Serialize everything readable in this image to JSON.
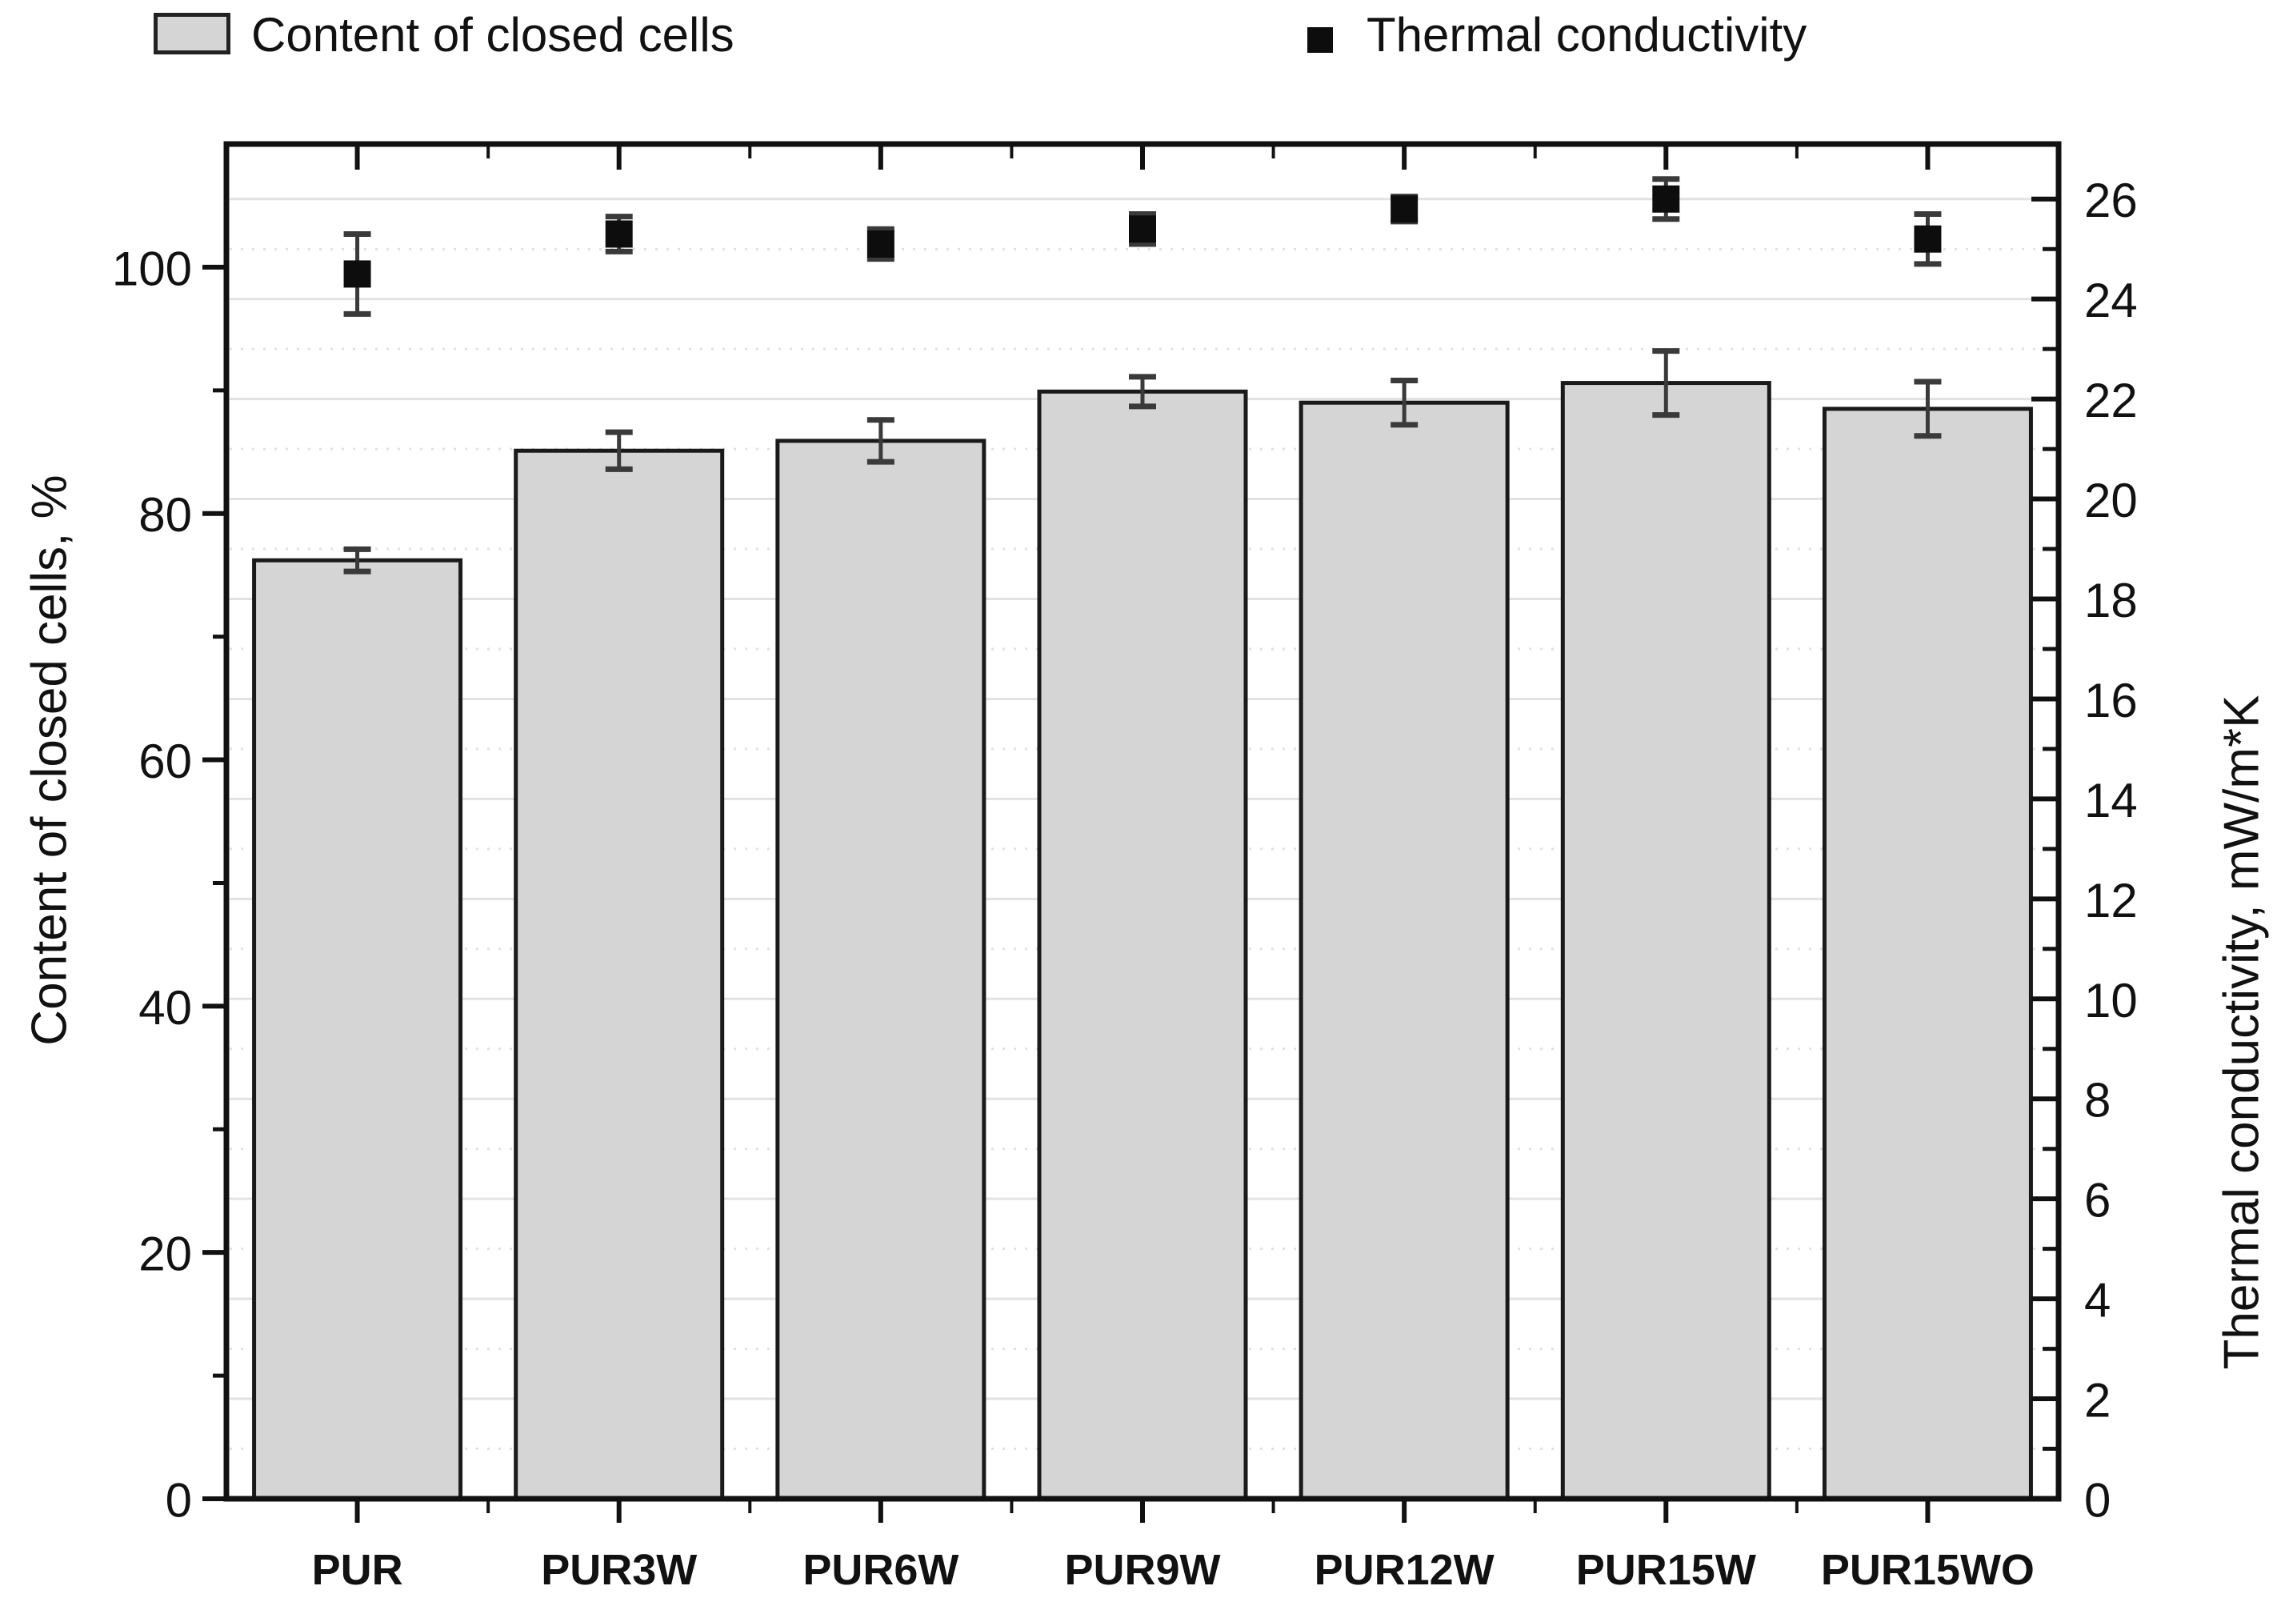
{
  "chart_data": {
    "type": "bar",
    "dual_axis": true,
    "title": "",
    "categories": [
      "PUR",
      "PUR3W",
      "PUR6W",
      "PUR9W",
      "PUR12W",
      "PUR15W",
      "PUR15WO"
    ],
    "series": [
      {
        "name": "Content of closed cells",
        "plot": "bar",
        "axis": "left",
        "unit": "%",
        "values": [
          76.2,
          85.1,
          85.9,
          89.9,
          89.0,
          90.6,
          88.5
        ],
        "errors": [
          0.9,
          1.5,
          1.7,
          1.2,
          1.8,
          2.6,
          2.2
        ],
        "fill": "#d5d5d5",
        "stroke": "#1a1a1a"
      },
      {
        "name": "Thermal conductivity",
        "plot": "scatter",
        "marker": "square",
        "axis": "right",
        "unit": "mW/m*K",
        "values": [
          24.5,
          25.3,
          25.1,
          25.4,
          25.8,
          26.0,
          25.2
        ],
        "errors": [
          0.8,
          0.35,
          0.3,
          0.3,
          0.25,
          0.4,
          0.5
        ],
        "color": "#0d0d0d"
      }
    ],
    "left_axis": {
      "title": "Content of closed cells, %",
      "min": 0,
      "max": 110,
      "major_step": 20,
      "minor_step": 10,
      "labeled_ticks": [
        "0",
        "20",
        "40",
        "60",
        "80",
        "100"
      ]
    },
    "right_axis": {
      "title": "Thermal conductivity, mW/m*K",
      "min": 0,
      "max": 27.1,
      "major_step": 2,
      "minor_step": 1,
      "labeled_ticks": [
        "0",
        "2",
        "4",
        "6",
        "8",
        "10",
        "12",
        "14",
        "16",
        "18",
        "20",
        "22",
        "24",
        "26"
      ]
    },
    "legend": [
      {
        "label": "Content of closed cells",
        "marker": "gray-bar-swatch"
      },
      {
        "label": "Thermal conductivity",
        "marker": "black-square"
      }
    ],
    "grid": {
      "horizontal_solid_at": "even right-axis values 2-26",
      "horizontal_dotted_at": "odd right-axis values 1-25",
      "vertical": false
    },
    "colors": {
      "grid": "#e2e2e2",
      "frame": "#111111",
      "error_bar": "#3a3a3a"
    }
  }
}
